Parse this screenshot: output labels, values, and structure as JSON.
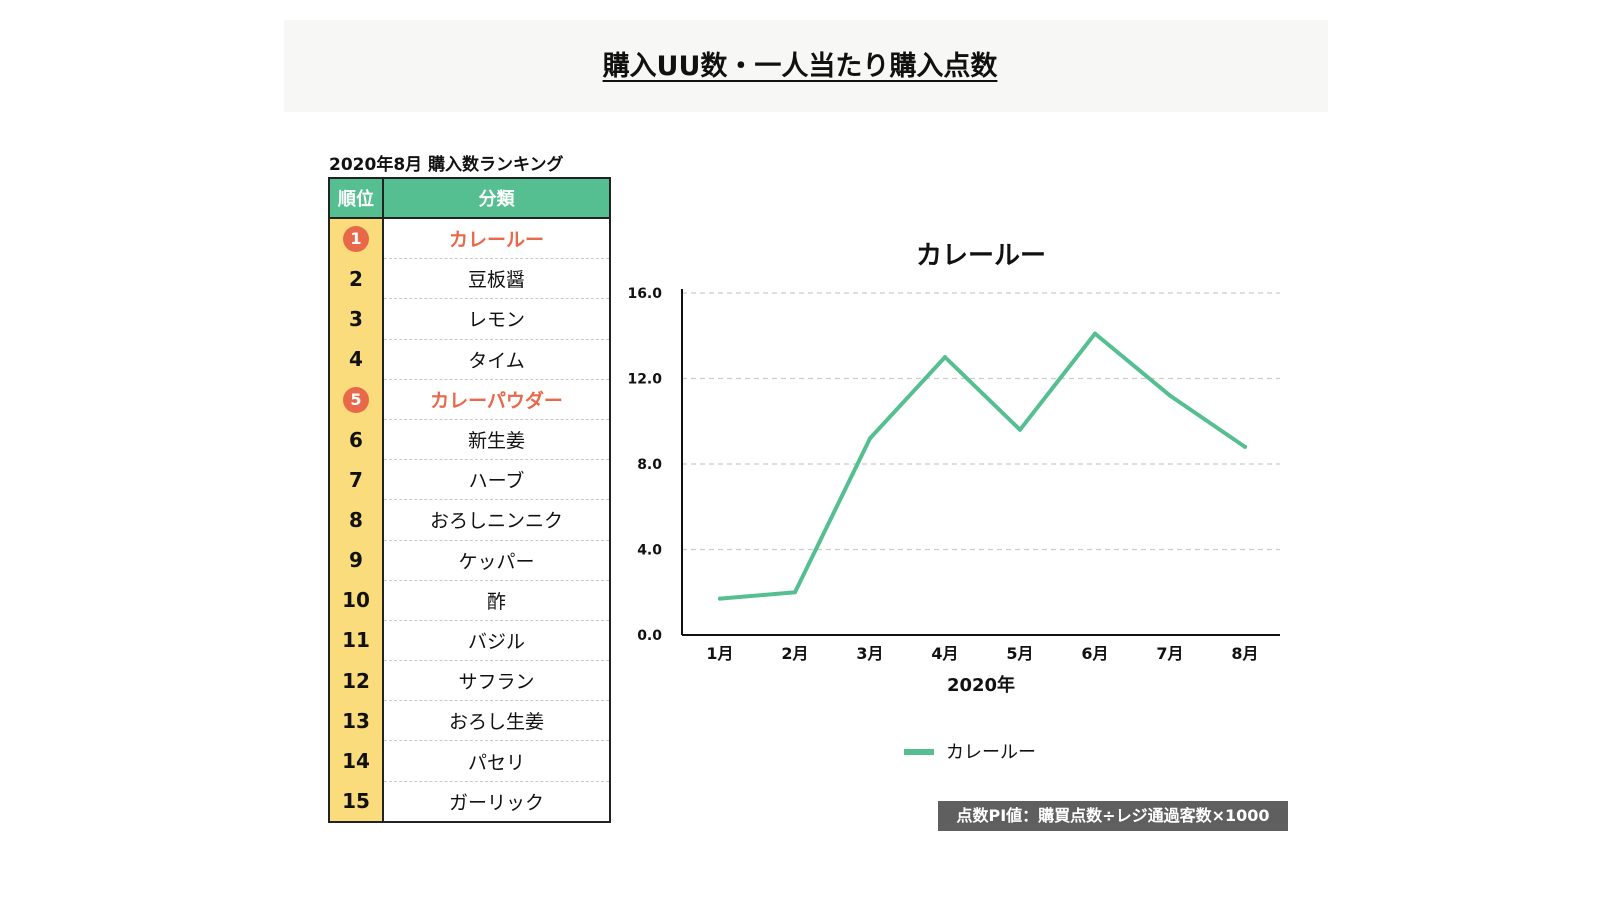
{
  "header": {
    "title": "購入UU数・一人当たり購入点数"
  },
  "ranking": {
    "caption": "2020年8月 購入数ランキング",
    "col_rank": "順位",
    "col_category": "分類",
    "rows": [
      {
        "rank": "1",
        "category": "カレールー",
        "highlight": true
      },
      {
        "rank": "2",
        "category": "豆板醤",
        "highlight": false
      },
      {
        "rank": "3",
        "category": "レモン",
        "highlight": false
      },
      {
        "rank": "4",
        "category": "タイム",
        "highlight": false
      },
      {
        "rank": "5",
        "category": "カレーパウダー",
        "highlight": true
      },
      {
        "rank": "6",
        "category": "新生姜",
        "highlight": false
      },
      {
        "rank": "7",
        "category": "ハーブ",
        "highlight": false
      },
      {
        "rank": "8",
        "category": "おろしニンニク",
        "highlight": false
      },
      {
        "rank": "9",
        "category": "ケッパー",
        "highlight": false
      },
      {
        "rank": "10",
        "category": "酢",
        "highlight": false
      },
      {
        "rank": "11",
        "category": "バジル",
        "highlight": false
      },
      {
        "rank": "12",
        "category": "サフラン",
        "highlight": false
      },
      {
        "rank": "13",
        "category": "おろし生姜",
        "highlight": false
      },
      {
        "rank": "14",
        "category": "パセリ",
        "highlight": false
      },
      {
        "rank": "15",
        "category": "ガーリック",
        "highlight": false
      }
    ]
  },
  "chart_data": {
    "type": "line",
    "title": "カレールー",
    "xlabel": "2020年",
    "ylabel": "",
    "categories": [
      "1月",
      "2月",
      "3月",
      "4月",
      "5月",
      "6月",
      "7月",
      "8月"
    ],
    "series": [
      {
        "name": "カレールー",
        "values": [
          1.7,
          2.0,
          9.2,
          13.0,
          9.6,
          14.1,
          11.2,
          8.8
        ]
      }
    ],
    "ylim": [
      0,
      16
    ],
    "yticks": [
      "0.0",
      "4.0",
      "8.0",
      "12.0",
      "16.0"
    ],
    "grid": true,
    "legend_position": "bottom",
    "color": "#55bf92"
  },
  "footnote": "点数PI値：購買点数÷レジ通過客数×1000"
}
